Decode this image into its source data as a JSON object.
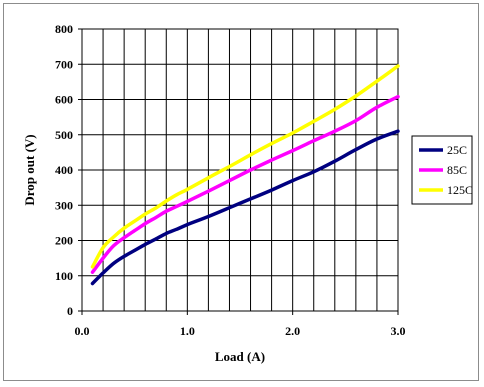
{
  "chart_data": {
    "type": "line",
    "xlabel": "Load (A)",
    "ylabel": "Drop out (V)",
    "xlim": [
      0,
      3.0
    ],
    "ylim": [
      0,
      800
    ],
    "x_ticks": [
      0.0,
      1.0,
      2.0,
      3.0
    ],
    "x_tick_labels": [
      "0.0",
      "1.0",
      "2.0",
      "3.0"
    ],
    "y_ticks": [
      0,
      100,
      200,
      300,
      400,
      500,
      600,
      700,
      800
    ],
    "y_tick_labels": [
      "0",
      "100",
      "200",
      "300",
      "400",
      "500",
      "600",
      "700",
      "800"
    ],
    "grid": "vertical and horizontal",
    "legend_position": "right",
    "series": [
      {
        "name": "25C",
        "color": "#000080",
        "x": [
          0.1,
          0.2,
          0.3,
          0.4,
          0.5,
          0.6,
          0.7,
          0.8,
          0.9,
          1.0,
          1.2,
          1.4,
          1.6,
          1.8,
          2.0,
          2.2,
          2.4,
          2.6,
          2.8,
          3.0
        ],
        "y": [
          78,
          108,
          135,
          155,
          172,
          189,
          204,
          220,
          232,
          245,
          268,
          293,
          318,
          343,
          370,
          395,
          425,
          458,
          488,
          510
        ]
      },
      {
        "name": "85C",
        "color": "#ff00ff",
        "x": [
          0.1,
          0.2,
          0.3,
          0.4,
          0.5,
          0.6,
          0.7,
          0.8,
          0.9,
          1.0,
          1.2,
          1.4,
          1.6,
          1.8,
          2.0,
          2.2,
          2.4,
          2.6,
          2.8,
          3.0
        ],
        "y": [
          110,
          150,
          185,
          208,
          228,
          248,
          265,
          283,
          297,
          311,
          340,
          370,
          400,
          428,
          455,
          483,
          510,
          540,
          578,
          608
        ]
      },
      {
        "name": "125C",
        "color": "#ffff00",
        "x": [
          0.1,
          0.2,
          0.3,
          0.4,
          0.5,
          0.6,
          0.7,
          0.8,
          0.9,
          1.0,
          1.2,
          1.4,
          1.6,
          1.8,
          2.0,
          2.2,
          2.4,
          2.6,
          2.8,
          3.0
        ],
        "y": [
          125,
          180,
          210,
          235,
          255,
          275,
          292,
          312,
          330,
          345,
          378,
          410,
          443,
          475,
          505,
          538,
          572,
          610,
          652,
          695
        ]
      }
    ]
  }
}
